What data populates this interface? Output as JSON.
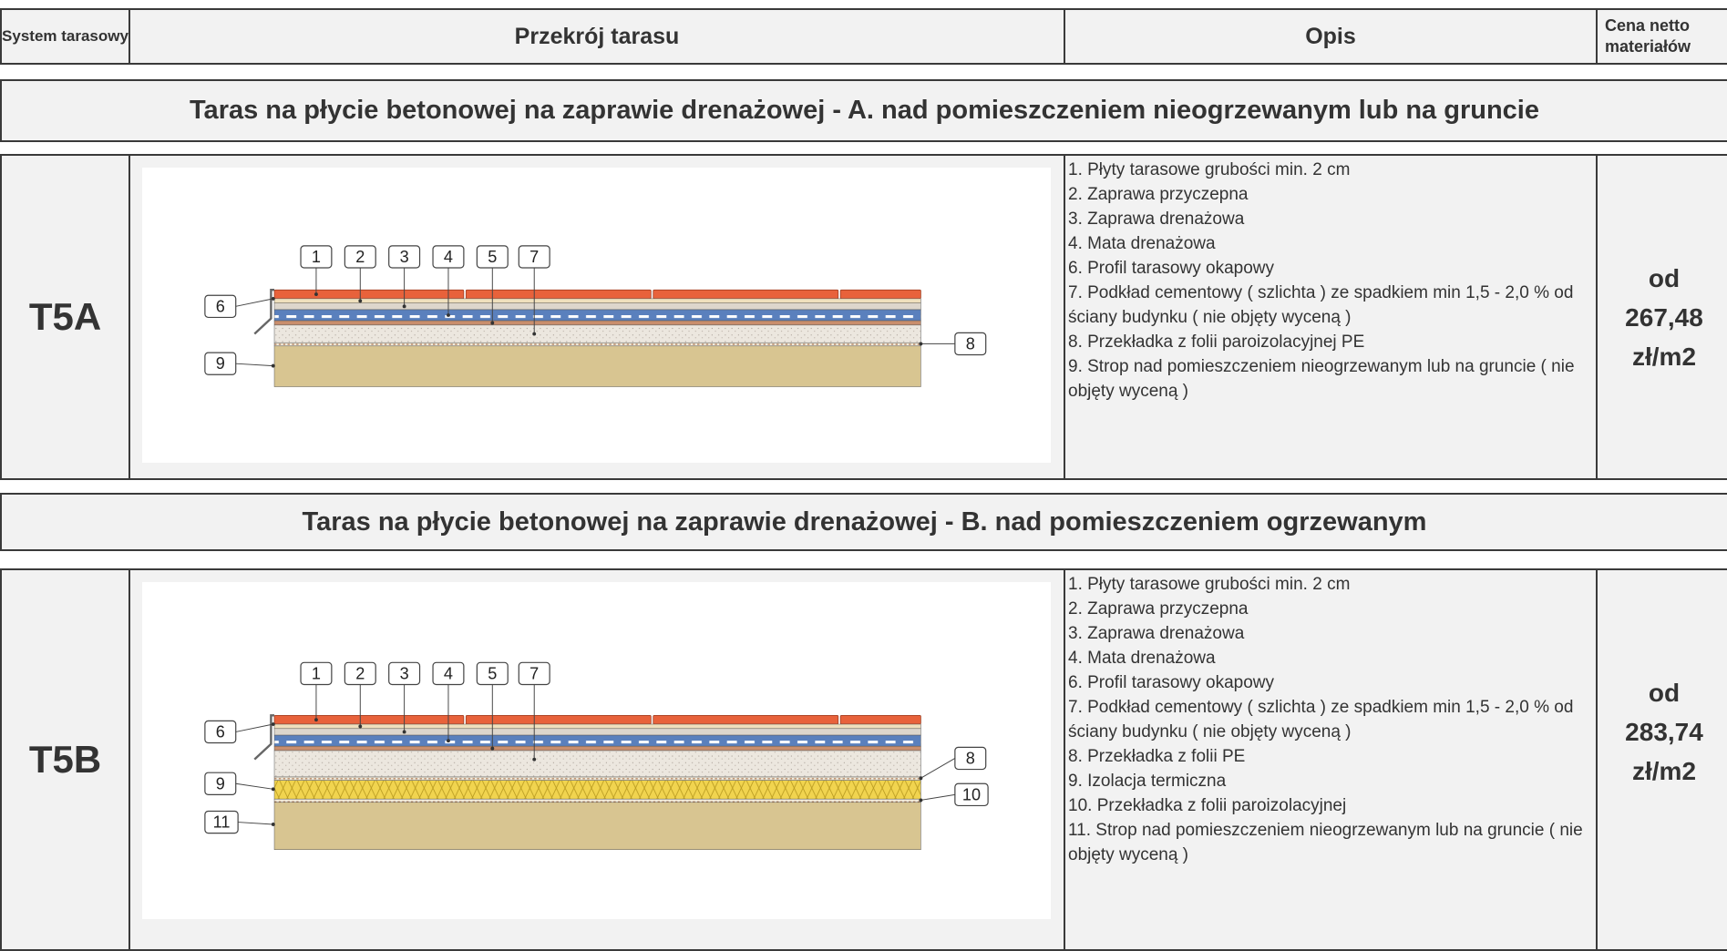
{
  "header": {
    "columns": [
      "System tarasowy",
      "Przekrój tarasu",
      "Opis",
      "Cena netto materiałów"
    ]
  },
  "sections": [
    {
      "title": "Taras na płycie betonowej na zaprawie drenażowej - A. nad pomieszczeniem nieogrzewanym lub na gruncie",
      "system": "T5A",
      "diagram": {
        "callouts": [
          "1",
          "2",
          "3",
          "4",
          "5",
          "7",
          "6",
          "9",
          "8"
        ]
      },
      "description": [
        "1. Płyty tarasowe grubości min. 2 cm",
        "2. Zaprawa przyczepna",
        "3. Zaprawa drenażowa",
        "4. Mata drenażowa",
        "6. Profil tarasowy okapowy",
        "7. Podkład cementowy ( szlichta ) ze spadkiem min 1,5 - 2,0 % od ściany budynku ( nie objęty wyceną )",
        "8. Przekładka z folii paroizolacyjnej PE",
        "9. Strop nad pomieszczeniem nieogrzewanym  lub na gruncie ( nie objęty wyceną )"
      ],
      "price": [
        "od",
        "267,48",
        "zł/m2"
      ]
    },
    {
      "title": "Taras na płycie betonowej na zaprawie drenażowej - B. nad pomieszczeniem ogrzewanym",
      "system": "T5B",
      "diagram": {
        "callouts": [
          "1",
          "2",
          "3",
          "4",
          "5",
          "7",
          "6",
          "9",
          "11",
          "8",
          "10"
        ]
      },
      "description": [
        "1. Płyty tarasowe grubości min. 2 cm",
        "2. Zaprawa przyczepna",
        "3. Zaprawa drenażowa",
        "4. Mata drenażowa",
        "6. Profil tarasowy okapowy",
        "7. Podkład cementowy ( szlichta ) ze spadkiem min 1,5 - 2,0 % od ściany budynku ( nie objęty wyceną )",
        "8. Przekładka z folii PE",
        "9. Izolacja termiczna",
        "10. Przekładka z folii paroizolacyjnej",
        "11. Strop nad pomieszczeniem nieogrzewanym  lub na gruncie ( nie objęty wyceną )"
      ],
      "price": [
        "od",
        "283,74",
        "zł/m2"
      ]
    }
  ]
}
